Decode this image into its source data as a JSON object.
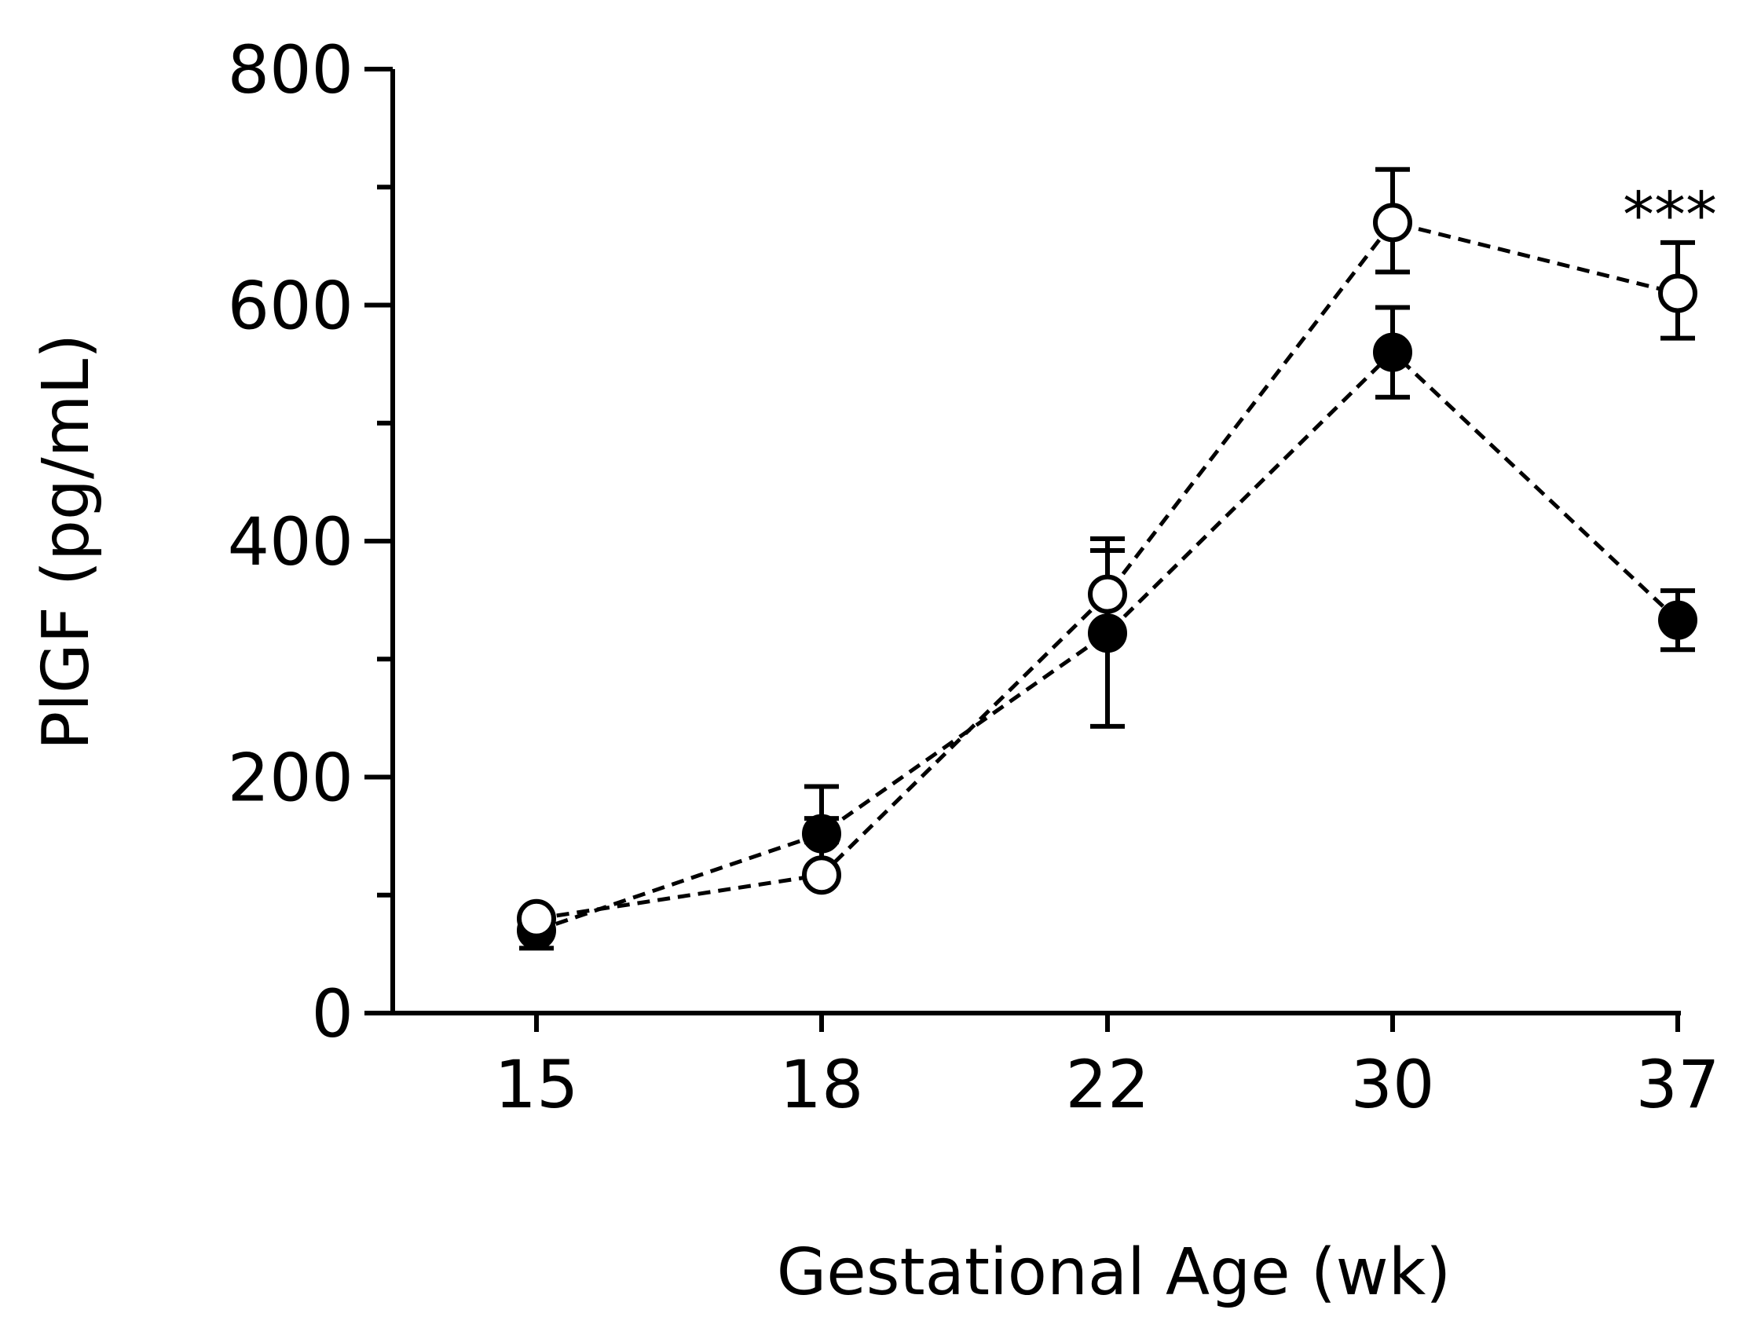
{
  "chart_data": {
    "type": "line",
    "title": "",
    "xlabel": "Gestational Age (wk)",
    "ylabel": "PlGF (pg/mL)",
    "categories": [
      "15",
      "18",
      "22",
      "30",
      "37"
    ],
    "ylim": [
      0,
      800
    ],
    "yticks": [
      0,
      200,
      400,
      600,
      800
    ],
    "ytick_labels": [
      "0",
      "200",
      "400",
      "600",
      "800"
    ],
    "yminor_ticks": [
      100,
      300,
      500,
      700
    ],
    "grid": false,
    "series": [
      {
        "name": "open circles",
        "marker": "open-circle",
        "values": [
          80,
          117,
          355,
          670,
          610
        ],
        "err_upper": [
          82,
          192,
          402,
          715,
          653
        ],
        "err_lower": [
          78,
          112,
          350,
          628,
          572
        ]
      },
      {
        "name": "filled circles",
        "marker": "filled-circle",
        "values": [
          70,
          152,
          322,
          560,
          333
        ],
        "err_upper": [
          85,
          165,
          392,
          598,
          358
        ],
        "err_lower": [
          55,
          145,
          243,
          522,
          308
        ]
      }
    ],
    "annotations": [
      {
        "text": "***",
        "category": "37",
        "y": 690
      }
    ]
  }
}
